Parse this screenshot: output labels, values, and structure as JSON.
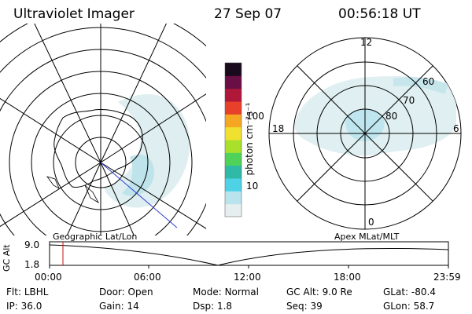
{
  "header": {
    "instrument": "Ultraviolet Imager",
    "date": "27 Sep 07",
    "time": "00:56:18 UT"
  },
  "left_map": {
    "label": "Geographic Lat/Lon"
  },
  "right_map": {
    "label": "Apex MLat/MLT",
    "mlt_labels": {
      "top": "12",
      "right": "6",
      "bottom": "0",
      "left": "18"
    },
    "lat_labels": [
      "60",
      "70",
      "80"
    ]
  },
  "colorbar": {
    "unit_label": "photon cm⁻²s⁻¹",
    "ticks": [
      "100",
      "10"
    ],
    "colors": [
      "#e6eef0",
      "#b9e4ee",
      "#4fd2e6",
      "#2fb9a7",
      "#4fd25a",
      "#a8e02c",
      "#f0e030",
      "#f5a623",
      "#e8402a",
      "#b0183a",
      "#6a0f45",
      "#1a0a1e"
    ]
  },
  "altitude_plot": {
    "ylabel": "GC Alt",
    "y_ticks": [
      "9.0",
      "1.8"
    ],
    "x_ticks": [
      "00:00",
      "06:00",
      "12:00",
      "18:00",
      "23:59"
    ],
    "current_time_fraction": 0.039
  },
  "status": {
    "row1": [
      {
        "label": "Flt:",
        "value": "LBHL"
      },
      {
        "label": "Door:",
        "value": "Open"
      },
      {
        "label": "Mode:",
        "value": "Normal"
      },
      {
        "label": "GC Alt:",
        "value": "9.0 Re"
      },
      {
        "label": "GLat:",
        "value": "-80.4"
      }
    ],
    "row2": [
      {
        "label": "IP:",
        "value": "36.0"
      },
      {
        "label": "Gain:",
        "value": "14"
      },
      {
        "label": "Dsp:",
        "value": "1.8"
      },
      {
        "label": "Seq:",
        "value": "39"
      },
      {
        "label": "GLon:",
        "value": "58.7"
      }
    ]
  }
}
